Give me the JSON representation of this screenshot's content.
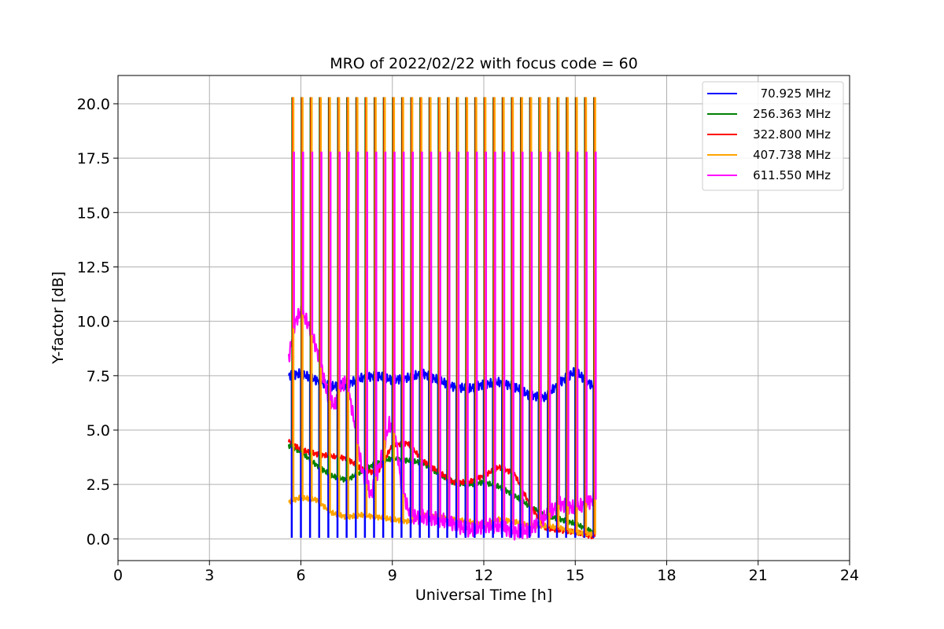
{
  "chart_data": {
    "type": "line",
    "title": "MRO of 2022/02/22 with focus code = 60",
    "xlabel": "Universal Time [h]",
    "ylabel": "Y-factor [dB]",
    "xlim": [
      0,
      24
    ],
    "ylim": [
      -1.0,
      21.3
    ],
    "x_ticks": [
      "0",
      "3",
      "6",
      "9",
      "12",
      "15",
      "18",
      "21",
      "24"
    ],
    "y_ticks": [
      "0.0",
      "2.5",
      "5.0",
      "7.5",
      "10.0",
      "12.5",
      "15.0",
      "17.5",
      "20.0"
    ],
    "grid": true,
    "legend_position": "top-right",
    "spikes": {
      "start": 5.7,
      "end": 15.6,
      "period": 0.3,
      "peak_upper": 20.3,
      "peak_magenta": 17.8,
      "dip_blue": 0.05
    },
    "series": [
      {
        "name": "70.925 MHz",
        "color": "#0000ff",
        "x": [
          5.6,
          6.0,
          6.5,
          7.0,
          7.5,
          8.0,
          8.5,
          9.0,
          9.5,
          10.0,
          10.5,
          11.0,
          11.5,
          12.0,
          12.5,
          13.0,
          13.5,
          14.0,
          14.5,
          15.0,
          15.6
        ],
        "y": [
          7.5,
          7.6,
          7.3,
          7.0,
          7.1,
          7.4,
          7.5,
          7.3,
          7.4,
          7.6,
          7.3,
          7.0,
          6.9,
          7.1,
          7.2,
          7.0,
          6.6,
          6.5,
          7.2,
          7.7,
          7.0
        ]
      },
      {
        "name": "256.363 MHz",
        "color": "#008000",
        "x": [
          5.6,
          6.0,
          6.5,
          7.0,
          7.5,
          8.0,
          8.5,
          9.0,
          9.5,
          10.0,
          10.5,
          11.0,
          11.5,
          12.0,
          12.5,
          13.0,
          13.5,
          14.0,
          14.5,
          15.0,
          15.6
        ],
        "y": [
          4.3,
          4.0,
          3.4,
          2.9,
          2.7,
          3.1,
          3.5,
          3.7,
          3.6,
          3.5,
          3.0,
          2.6,
          2.5,
          2.6,
          2.4,
          2.0,
          1.5,
          1.1,
          0.9,
          0.7,
          0.3
        ]
      },
      {
        "name": "322.800 MHz",
        "color": "#ff0000",
        "x": [
          5.6,
          6.0,
          6.5,
          7.0,
          7.5,
          8.0,
          8.5,
          9.0,
          9.5,
          10.0,
          10.5,
          11.0,
          11.5,
          12.0,
          12.5,
          13.0,
          13.5,
          14.0,
          14.5,
          15.0,
          15.6
        ],
        "y": [
          4.5,
          4.1,
          3.9,
          3.8,
          3.7,
          3.2,
          3.0,
          4.3,
          4.4,
          3.6,
          3.1,
          2.6,
          2.6,
          2.9,
          3.3,
          3.0,
          1.6,
          0.5,
          0.4,
          0.3,
          0.1
        ]
      },
      {
        "name": "407.738 MHz",
        "color": "#ffa500",
        "x": [
          5.6,
          6.0,
          6.5,
          7.0,
          7.5,
          8.0,
          8.5,
          9.0,
          9.5,
          10.0,
          10.5,
          11.0,
          11.5,
          12.0,
          12.5,
          13.0,
          13.5,
          14.0,
          14.5,
          15.0,
          15.6
        ],
        "y": [
          1.7,
          1.9,
          1.8,
          1.2,
          1.0,
          1.1,
          1.0,
          0.9,
          0.8,
          1.1,
          1.0,
          0.9,
          0.8,
          0.6,
          0.9,
          0.8,
          0.6,
          0.6,
          0.5,
          0.3,
          0.2
        ]
      },
      {
        "name": "611.550 MHz",
        "color": "#ff00ff",
        "x": [
          5.6,
          5.8,
          6.0,
          6.3,
          6.6,
          6.9,
          7.1,
          7.3,
          7.5,
          7.8,
          8.0,
          8.3,
          8.6,
          8.9,
          9.1,
          9.3,
          9.6,
          10.0,
          10.5,
          11.0,
          11.5,
          12.0,
          12.5,
          13.0,
          13.5,
          14.0,
          14.5,
          15.0,
          15.6
        ],
        "y": [
          8.3,
          9.9,
          10.5,
          9.7,
          8.3,
          6.5,
          6.1,
          7.0,
          7.3,
          5.0,
          3.2,
          2.0,
          3.5,
          5.3,
          4.8,
          2.4,
          1.0,
          1.0,
          0.9,
          0.7,
          0.4,
          0.6,
          0.6,
          0.3,
          0.4,
          1.0,
          1.6,
          1.4,
          1.8
        ]
      }
    ]
  }
}
